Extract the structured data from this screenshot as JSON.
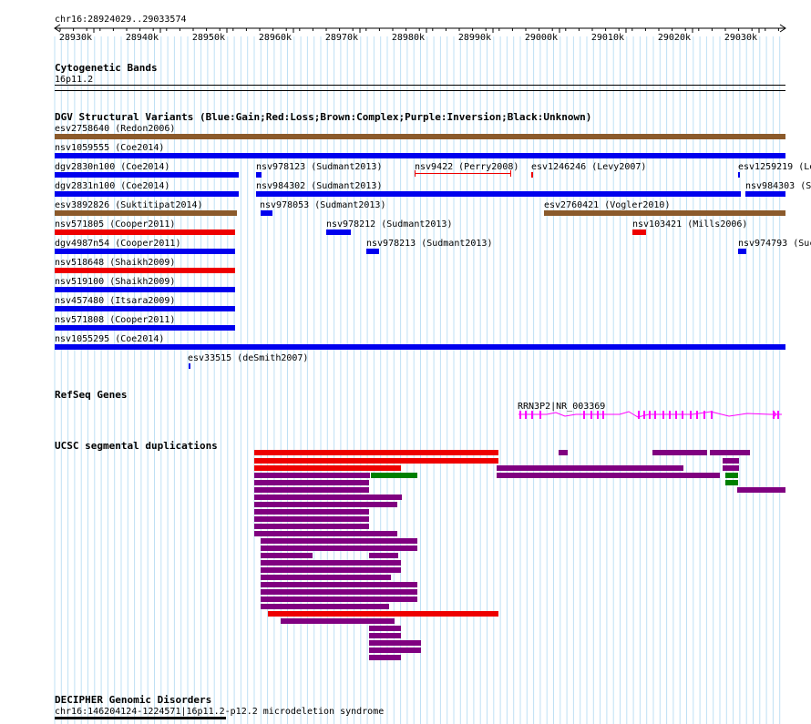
{
  "coords_label": "chr16:28924029..29033574",
  "ruler": {
    "ticks": [
      "28930k",
      "28940k",
      "28950k",
      "28960k",
      "28970k",
      "28980k",
      "28990k",
      "29000k",
      "29010k",
      "29020k",
      "29030k"
    ]
  },
  "tracks": {
    "cyto": {
      "title": "Cytogenetic Bands",
      "band": "16p11.2"
    },
    "dgv": {
      "title": "DGV Structural Variants (Blue:Gain;Red:Loss;Brown:Complex;Purple:Inversion;Black:Unknown)",
      "colors": {
        "gain": "#0000ee",
        "loss": "#ee0000",
        "complex": "#8b5a2b",
        "inversion": "#800080"
      },
      "features": [
        {
          "label": "esv2758640 (Redon2006)",
          "type": "complex"
        },
        {
          "label": "nsv1059555 (Coe2014)",
          "type": "gain"
        },
        {
          "label": "dgv2830n100 (Coe2014)",
          "type": "gain"
        },
        {
          "label": "nsv978123 (Sudmant2013)",
          "type": "gain"
        },
        {
          "label": "nsv9422 (Perry2008)",
          "type": "loss"
        },
        {
          "label": "esv1246246 (Levy2007)",
          "type": "loss"
        },
        {
          "label": "esv1259219 (Le",
          "type": "gain"
        },
        {
          "label": "dgv2831n100 (Coe2014)",
          "type": "gain"
        },
        {
          "label": "nsv984302 (Sudmant2013)",
          "type": "gain"
        },
        {
          "label": "nsv984303 (S",
          "type": "gain"
        },
        {
          "label": "esv3892826 (Suktitipat2014)",
          "type": "complex"
        },
        {
          "label": "nsv978053 (Sudmant2013)",
          "type": "gain"
        },
        {
          "label": "esv2760421 (Vogler2010)",
          "type": "complex"
        },
        {
          "label": "nsv571805 (Cooper2011)",
          "type": "loss"
        },
        {
          "label": "nsv978212 (Sudmant2013)",
          "type": "gain"
        },
        {
          "label": "nsv103421 (Mills2006)",
          "type": "loss"
        },
        {
          "label": "dgv4987n54 (Cooper2011)",
          "type": "gain"
        },
        {
          "label": "nsv978213 (Sudmant2013)",
          "type": "gain"
        },
        {
          "label": "nsv974793 (Suc",
          "type": "gain"
        },
        {
          "label": "nsv518648 (Shaikh2009)",
          "type": "loss"
        },
        {
          "label": "nsv519100 (Shaikh2009)",
          "type": "gain"
        },
        {
          "label": "nsv457480 (Itsara2009)",
          "type": "gain"
        },
        {
          "label": "nsv571808 (Cooper2011)",
          "type": "gain"
        },
        {
          "label": "nsv1055295 (Coe2014)",
          "type": "gain"
        },
        {
          "label": "esv33515 (deSmith2007)",
          "type": "gain"
        }
      ]
    },
    "refseq": {
      "title": "RefSeq Genes",
      "gene_label": "RRN3P2|NR_003369",
      "color": "#ff00ff"
    },
    "segdups": {
      "title": "UCSC segmental duplications",
      "colors": {
        "high": "#ee0000",
        "mid": "#800080",
        "low": "#008000"
      }
    },
    "decipher": {
      "title": "DECIPHER Genomic Disorders",
      "feature_label": "chr16:146204124-1224571|16p11.2-p12.2 microdeletion syndrome"
    }
  }
}
